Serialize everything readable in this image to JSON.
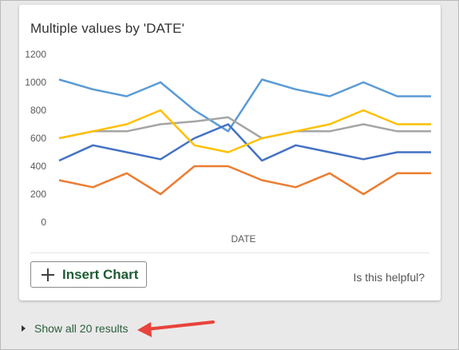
{
  "card": {
    "insert_label": "Insert Chart",
    "helpful_text": "Is this helpful?"
  },
  "footer": {
    "show_all": "Show all 20 results"
  },
  "annotation": {
    "arrow_color": "#e8433c"
  },
  "chart_data": {
    "type": "line",
    "title": "Multiple values by 'DATE'",
    "xlabel": "DATE",
    "ylabel": "",
    "ylim": [
      0,
      1200
    ],
    "yticks": [
      0,
      200,
      400,
      600,
      800,
      1000,
      1200
    ],
    "grid": false,
    "legend": "none",
    "x": [
      1,
      2,
      3,
      4,
      5,
      6,
      7,
      8,
      9,
      10,
      11,
      12
    ],
    "series": [
      {
        "color": "#5b9bd5",
        "values": [
          1020,
          950,
          900,
          1000,
          800,
          650,
          1020,
          950,
          900,
          1000,
          900,
          900
        ]
      },
      {
        "color": "#4472c4",
        "values": [
          440,
          550,
          500,
          450,
          600,
          700,
          440,
          550,
          500,
          450,
          500,
          500
        ]
      },
      {
        "color": "#ed7d31",
        "values": [
          300,
          250,
          350,
          200,
          400,
          400,
          300,
          250,
          350,
          200,
          350,
          350
        ]
      },
      {
        "color": "#a5a5a5",
        "values": [
          600,
          650,
          650,
          700,
          720,
          750,
          600,
          650,
          650,
          700,
          650,
          650
        ]
      },
      {
        "color": "#ffc000",
        "values": [
          600,
          650,
          700,
          800,
          550,
          500,
          600,
          650,
          700,
          800,
          700,
          700
        ]
      }
    ]
  }
}
